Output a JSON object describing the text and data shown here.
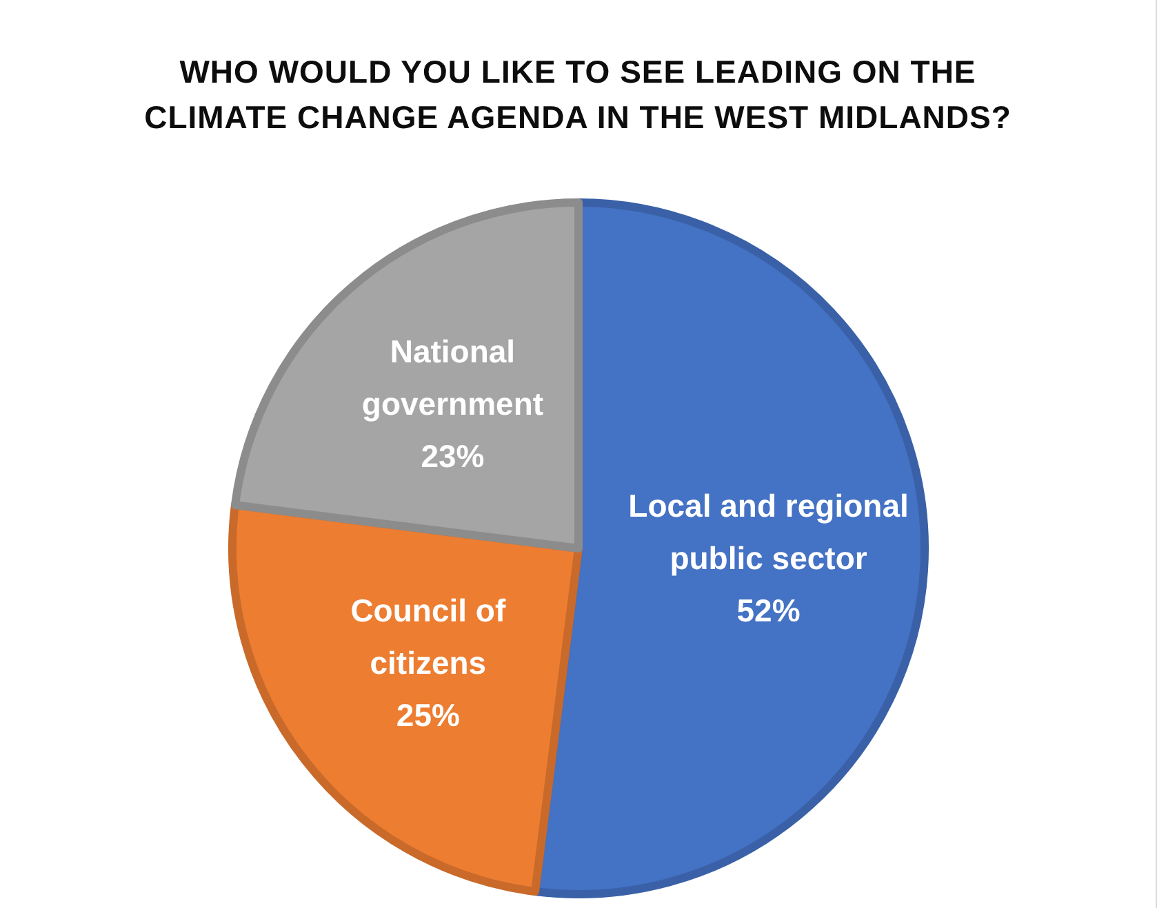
{
  "chart_data": {
    "type": "pie",
    "title": "WHO WOULD YOU LIKE TO SEE LEADING ON THE CLIMATE CHANGE AGENDA IN THE WEST MIDLANDS?",
    "categories": [
      "Local and regional public sector",
      "Council of citizens",
      "National government"
    ],
    "values": [
      52,
      25,
      23
    ],
    "value_labels": [
      "52%",
      "25%",
      "23%"
    ],
    "colors": [
      "#4472c4",
      "#ed7d31",
      "#a5a5a5"
    ],
    "legend": false
  }
}
